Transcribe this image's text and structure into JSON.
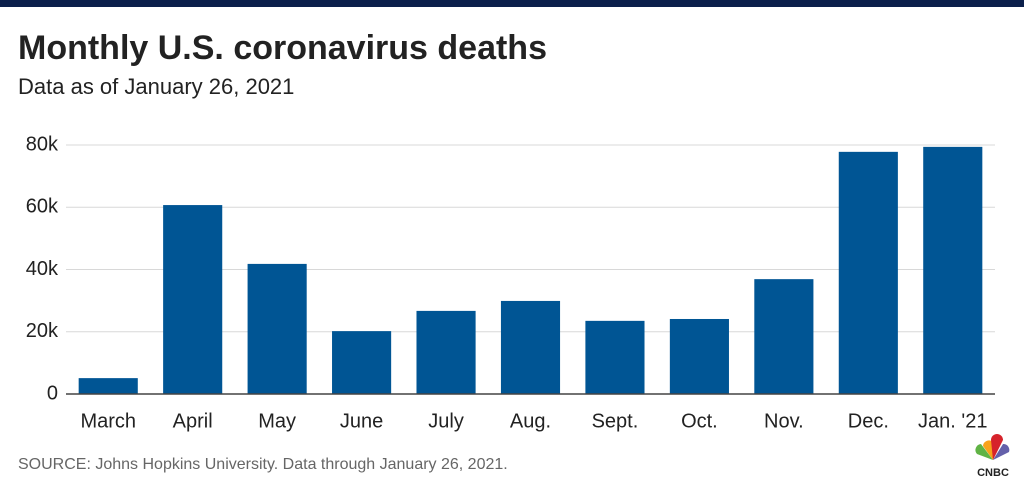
{
  "chart_data": {
    "type": "bar",
    "title": "Monthly U.S. coronavirus deaths",
    "subtitle": "Data as of January 26, 2021",
    "source": "SOURCE: Johns Hopkins University. Data through January 26, 2021.",
    "logo": "CNBC",
    "categories": [
      "March",
      "April",
      "May",
      "June",
      "July",
      "Aug.",
      "Sept.",
      "Oct.",
      "Nov.",
      "Dec.",
      "Jan. '21"
    ],
    "values": [
      5100,
      60700,
      41800,
      20200,
      26700,
      29900,
      23500,
      24100,
      36900,
      77800,
      79400
    ],
    "color": "#005594",
    "ylim": [
      0,
      80000
    ],
    "yticks": [
      0,
      {
        "value": 20000,
        "label": "20k"
      },
      {
        "value": 40000,
        "label": "40k"
      },
      {
        "value": 60000,
        "label": "60k"
      },
      {
        "value": 80000,
        "label": "80k"
      }
    ],
    "grid": true
  }
}
